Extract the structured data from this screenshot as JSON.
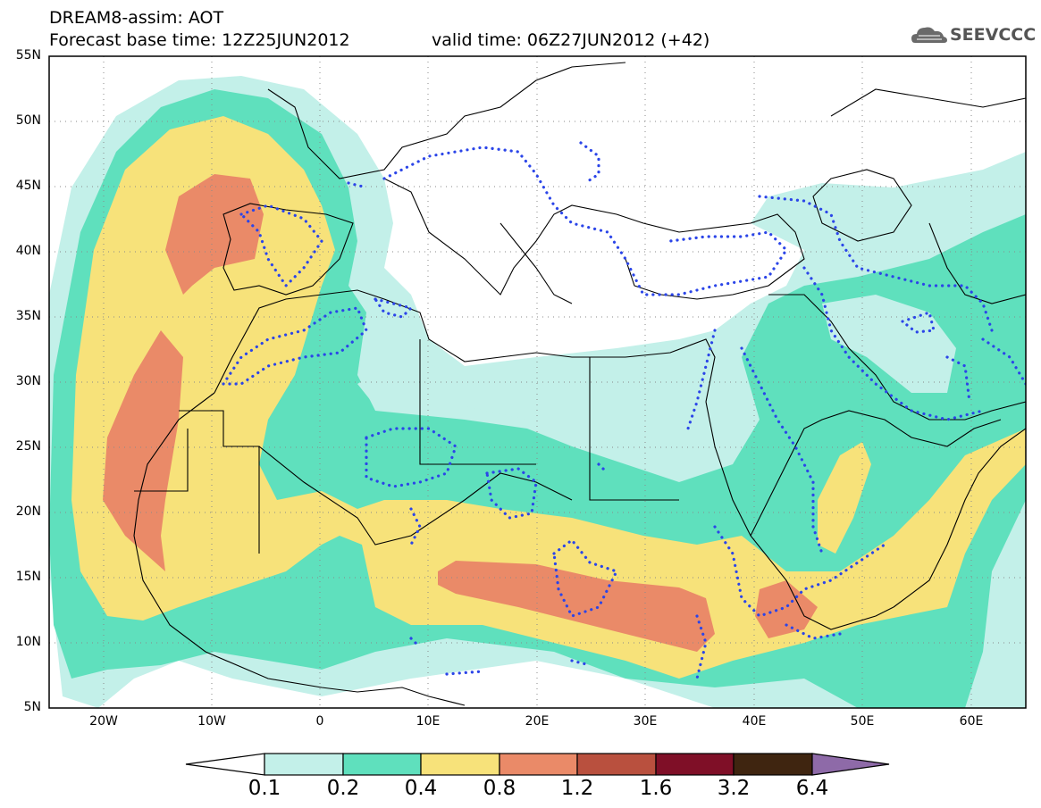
{
  "title": {
    "line1": "DREAM8-assim: AOT",
    "base": "Forecast base time: 12Z25JUN2012",
    "valid": "valid time: 06Z27JUN2012 (+42)"
  },
  "logo": {
    "text": "SEEVCCC",
    "icon": "cloud-logo-icon"
  },
  "map": {
    "lon_range": [
      -25,
      65
    ],
    "lat_range": [
      5,
      55
    ],
    "lat_labels": [
      "55N",
      "50N",
      "45N",
      "40N",
      "35N",
      "30N",
      "25N",
      "20N",
      "15N",
      "10N",
      "5N"
    ],
    "lon_labels": [
      "20W",
      "10W",
      "0",
      "10E",
      "20E",
      "30E",
      "40E",
      "50E",
      "60E"
    ],
    "grid": true
  },
  "colorbar": {
    "labels": [
      "0.1",
      "0.2",
      "0.4",
      "0.8",
      "1.2",
      "1.6",
      "3.2",
      "6.4"
    ],
    "colors": [
      "#ffffff",
      "#c3f0e9",
      "#5fe0bd",
      "#f7e27a",
      "#ea8a68",
      "#b9503e",
      "#7f0f27",
      "#3f2510",
      "#8e6aa8"
    ]
  }
}
